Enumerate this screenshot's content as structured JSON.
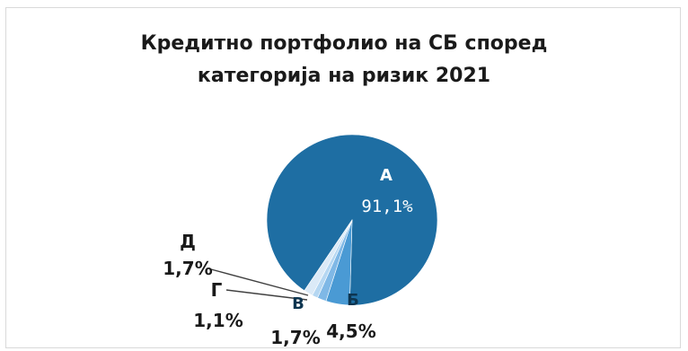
{
  "chart_data": {
    "type": "pie",
    "title_lines": [
      "Кредитно портфолио на СБ според",
      "категорија на ризик 2021"
    ],
    "slices": [
      {
        "name": "А",
        "value": 91.1,
        "label": "91,1%",
        "color": "#1e6ea3"
      },
      {
        "name": "Б",
        "value": 4.5,
        "label": "4,5%",
        "color": "#4a9ad4"
      },
      {
        "name": "В",
        "value": 1.7,
        "label": "1,7%",
        "color": "#7fb8e6"
      },
      {
        "name": "Г",
        "value": 1.1,
        "label": "1,1%",
        "color": "#b5d7f2"
      },
      {
        "name": "Д",
        "value": 1.7,
        "label": "1,7%",
        "color": "#dbeaf7"
      }
    ],
    "legend": "none",
    "data_labels": "category and percentage"
  }
}
